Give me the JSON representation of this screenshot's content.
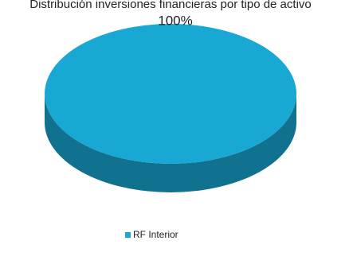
{
  "chart_data": {
    "type": "pie",
    "title": "Distribución inversiones financieras por tipo de activo",
    "categories": [
      "RF Interior"
    ],
    "values": [
      100
    ],
    "value_labels": [
      "100%"
    ],
    "colors": [
      "#19a7d3"
    ],
    "legend": "bottom"
  }
}
